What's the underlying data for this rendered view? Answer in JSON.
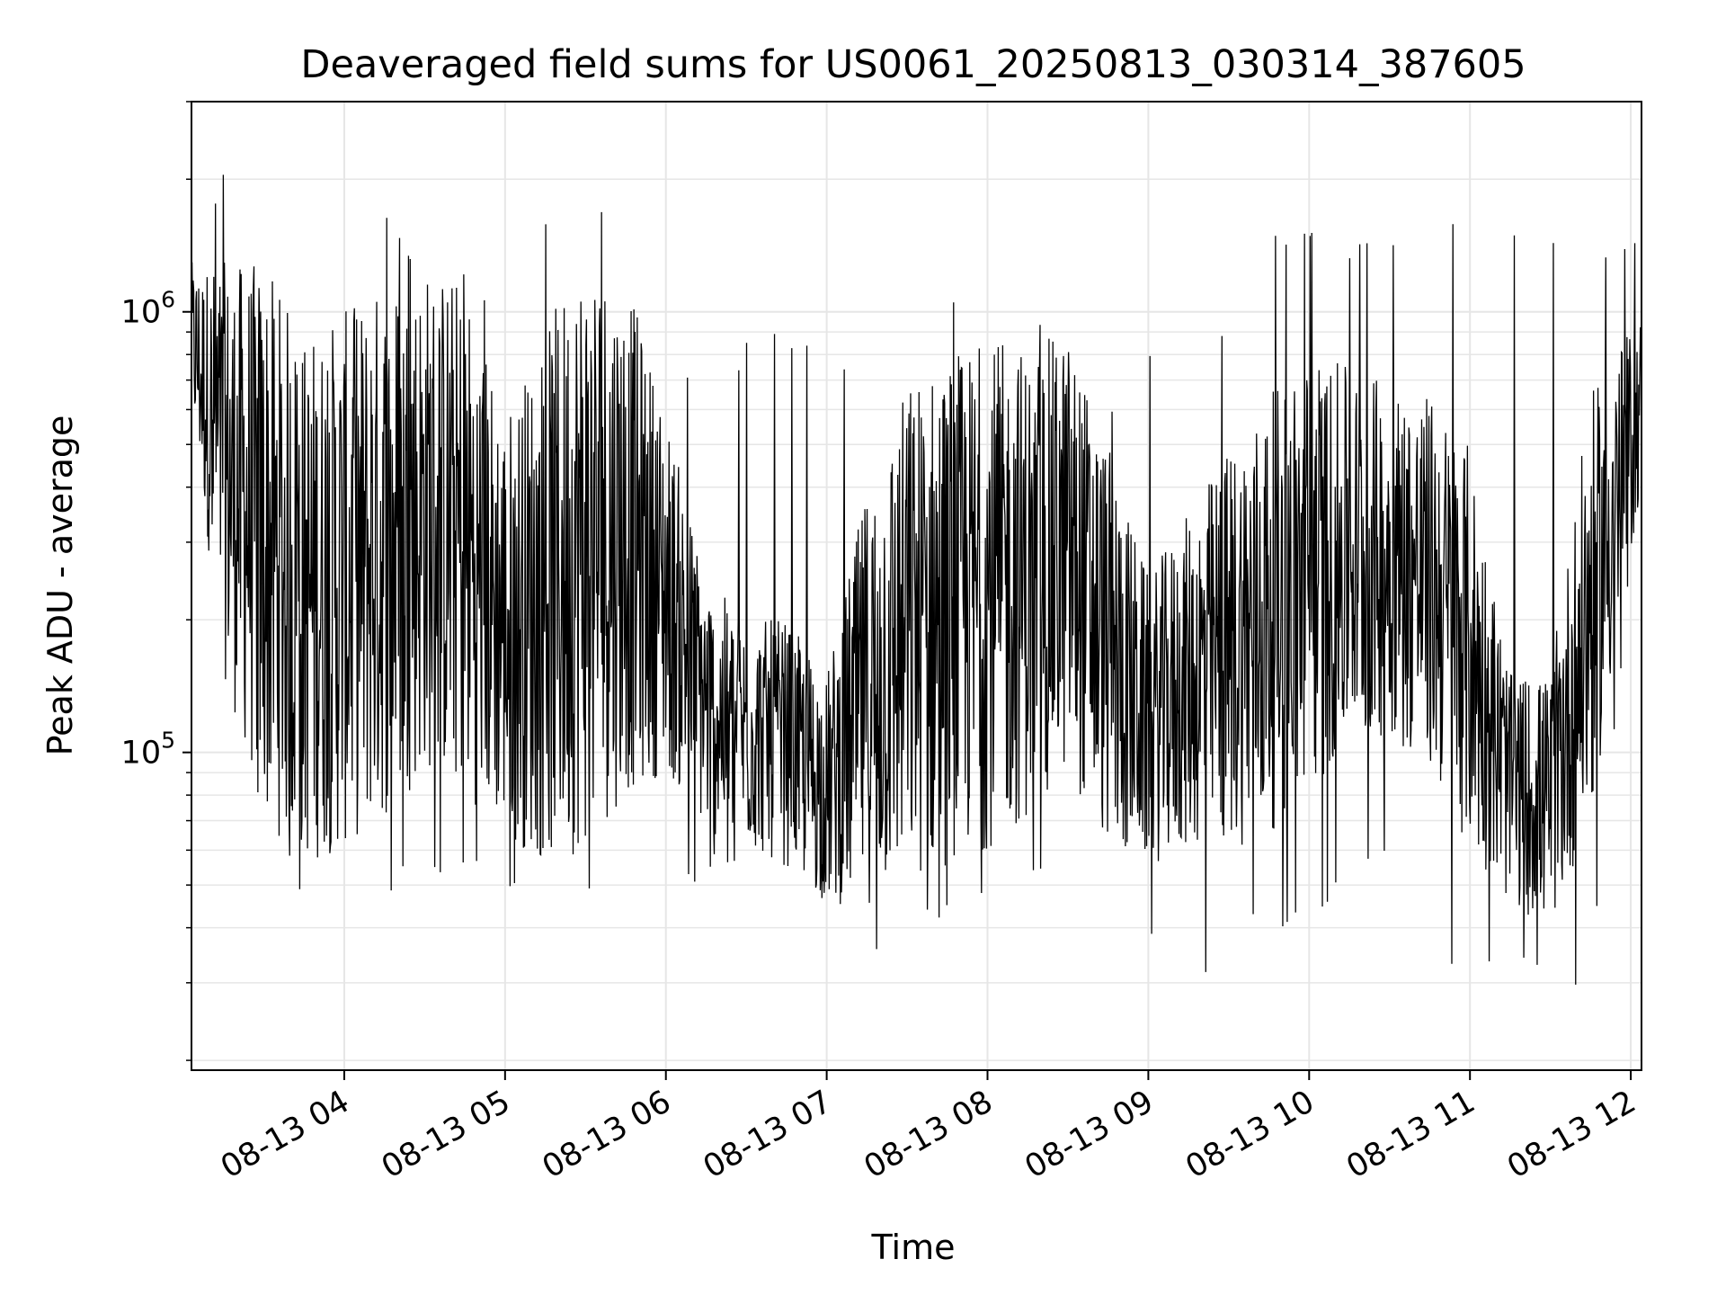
{
  "chart_data": {
    "type": "line",
    "title": "Deaveraged field sums for US0061_20250813_030314_387605",
    "xlabel": "Time",
    "ylabel": "Peak ADU - average",
    "y_scale": "log",
    "ylim": [
      19000,
      3000000
    ],
    "xlim": [
      "2025-08-13T03:03",
      "2025-08-13T12:04"
    ],
    "x_ticks": [
      "08-13 04",
      "08-13 05",
      "08-13 06",
      "08-13 07",
      "08-13 08",
      "08-13 09",
      "08-13 10",
      "08-13 11",
      "08-13 12"
    ],
    "y_ticks": [
      {
        "base": "10",
        "exp": "5"
      },
      {
        "base": "10",
        "exp": "6"
      }
    ],
    "grid": true,
    "legend": "none",
    "series_color": "#000000",
    "series": [
      {
        "x": [
          "2025-08-13T03:03",
          "2025-08-13T03:15",
          "2025-08-13T03:30",
          "2025-08-13T03:45",
          "2025-08-13T04:00",
          "2025-08-13T04:15",
          "2025-08-13T04:30",
          "2025-08-13T04:45",
          "2025-08-13T05:00",
          "2025-08-13T05:15",
          "2025-08-13T05:30",
          "2025-08-13T05:45",
          "2025-08-13T06:00",
          "2025-08-13T06:15",
          "2025-08-13T06:30",
          "2025-08-13T06:45",
          "2025-08-13T07:00",
          "2025-08-13T07:15",
          "2025-08-13T07:30",
          "2025-08-13T07:45",
          "2025-08-13T08:00",
          "2025-08-13T08:15",
          "2025-08-13T08:30",
          "2025-08-13T08:45",
          "2025-08-13T09:00",
          "2025-08-13T09:15",
          "2025-08-13T09:30",
          "2025-08-13T09:45",
          "2025-08-13T10:00",
          "2025-08-13T10:15",
          "2025-08-13T10:30",
          "2025-08-13T10:45",
          "2025-08-13T11:00",
          "2025-08-13T11:15",
          "2025-08-13T11:30",
          "2025-08-13T11:45",
          "2025-08-13T12:04"
        ],
        "low": [
          600000,
          150000,
          70000,
          55000,
          60000,
          70000,
          90000,
          80000,
          65000,
          55000,
          60000,
          80000,
          90000,
          65000,
          60000,
          55000,
          45000,
          45000,
          50000,
          55000,
          60000,
          70000,
          90000,
          60000,
          55000,
          60000,
          60000,
          65000,
          80000,
          100000,
          110000,
          90000,
          60000,
          45000,
          40000,
          70000,
          400000
        ],
        "high": [
          1300000,
          1300000,
          1300000,
          900000,
          1000000,
          1200000,
          1300000,
          1200000,
          600000,
          900000,
          1500000,
          1200000,
          600000,
          250000,
          200000,
          200000,
          150000,
          400000,
          700000,
          800000,
          850000,
          850000,
          900000,
          500000,
          250000,
          350000,
          500000,
          650000,
          800000,
          750000,
          700000,
          650000,
          500000,
          150000,
          150000,
          650000,
          1000000
        ],
        "spikes_max": [
          1000000,
          2300000,
          1800000,
          700000,
          900000,
          1800000,
          1400000,
          1300000,
          1000000,
          1800000,
          2100000,
          1800000,
          900000,
          650000,
          900000,
          1000000,
          750000,
          800000,
          900000,
          1200000,
          900000,
          1000000,
          950000,
          600000,
          900000,
          700000,
          1000000,
          1500000,
          1600000,
          1500000,
          1500000,
          1900000,
          1600000,
          1700000,
          1500000,
          1400000,
          1450000
        ],
        "spikes_min": [
          600000,
          200000,
          60000,
          45000,
          45000,
          45000,
          55000,
          50000,
          45000,
          45000,
          45000,
          60000,
          50000,
          50000,
          50000,
          40000,
          28000,
          28000,
          40000,
          40000,
          45000,
          45000,
          50000,
          35000,
          38000,
          24000,
          40000,
          40000,
          40000,
          50000,
          55000,
          30000,
          35000,
          32000,
          33000,
          26000,
          500000
        ]
      }
    ]
  }
}
